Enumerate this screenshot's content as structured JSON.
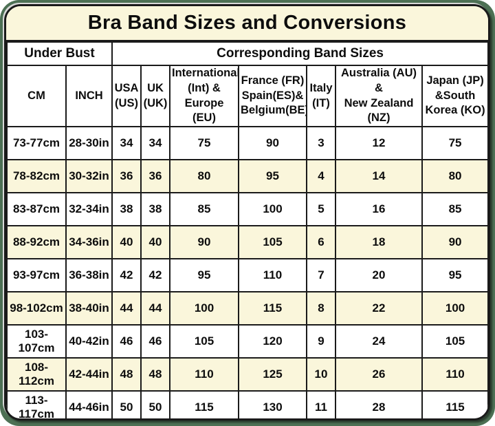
{
  "title": "Bra Band Sizes and Conversions",
  "colors": {
    "cream": "#FAF6DB",
    "frame_green": "#4D7054",
    "border": "#1A1A1A"
  },
  "header_groups": {
    "under_bust": "Under Bust",
    "corresponding": "Corresponding Band Sizes"
  },
  "columns": [
    {
      "key": "cm",
      "label": "CM"
    },
    {
      "key": "inch",
      "label": "INCH"
    },
    {
      "key": "usa",
      "label": "USA\n(US)"
    },
    {
      "key": "uk",
      "label": "UK\n(UK)"
    },
    {
      "key": "int-eu",
      "label": "International\n(Int) &\nEurope (EU)"
    },
    {
      "key": "fr-es-be",
      "label": "France (FR)\nSpain(ES)&\nBelgium(BE)"
    },
    {
      "key": "it",
      "label": "Italy\n(IT)"
    },
    {
      "key": "au-nz",
      "label": "Australia (AU)\n&\nNew Zealand\n(NZ)"
    },
    {
      "key": "jp-ko",
      "label": "Japan (JP)\n&South\nKorea (KO)"
    }
  ],
  "rows": [
    [
      "73-77cm",
      "28-30in",
      "34",
      "34",
      "75",
      "90",
      "3",
      "12",
      "75"
    ],
    [
      "78-82cm",
      "30-32in",
      "36",
      "36",
      "80",
      "95",
      "4",
      "14",
      "80"
    ],
    [
      "83-87cm",
      "32-34in",
      "38",
      "38",
      "85",
      "100",
      "5",
      "16",
      "85"
    ],
    [
      "88-92cm",
      "34-36in",
      "40",
      "40",
      "90",
      "105",
      "6",
      "18",
      "90"
    ],
    [
      "93-97cm",
      "36-38in",
      "42",
      "42",
      "95",
      "110",
      "7",
      "20",
      "95"
    ],
    [
      "98-102cm",
      "38-40in",
      "44",
      "44",
      "100",
      "115",
      "8",
      "22",
      "100"
    ],
    [
      "103-107cm",
      "40-42in",
      "46",
      "46",
      "105",
      "120",
      "9",
      "24",
      "105"
    ],
    [
      "108-112cm",
      "42-44in",
      "48",
      "48",
      "110",
      "125",
      "10",
      "26",
      "110"
    ],
    [
      "113-117cm",
      "44-46in",
      "50",
      "50",
      "115",
      "130",
      "11",
      "28",
      "115"
    ]
  ]
}
